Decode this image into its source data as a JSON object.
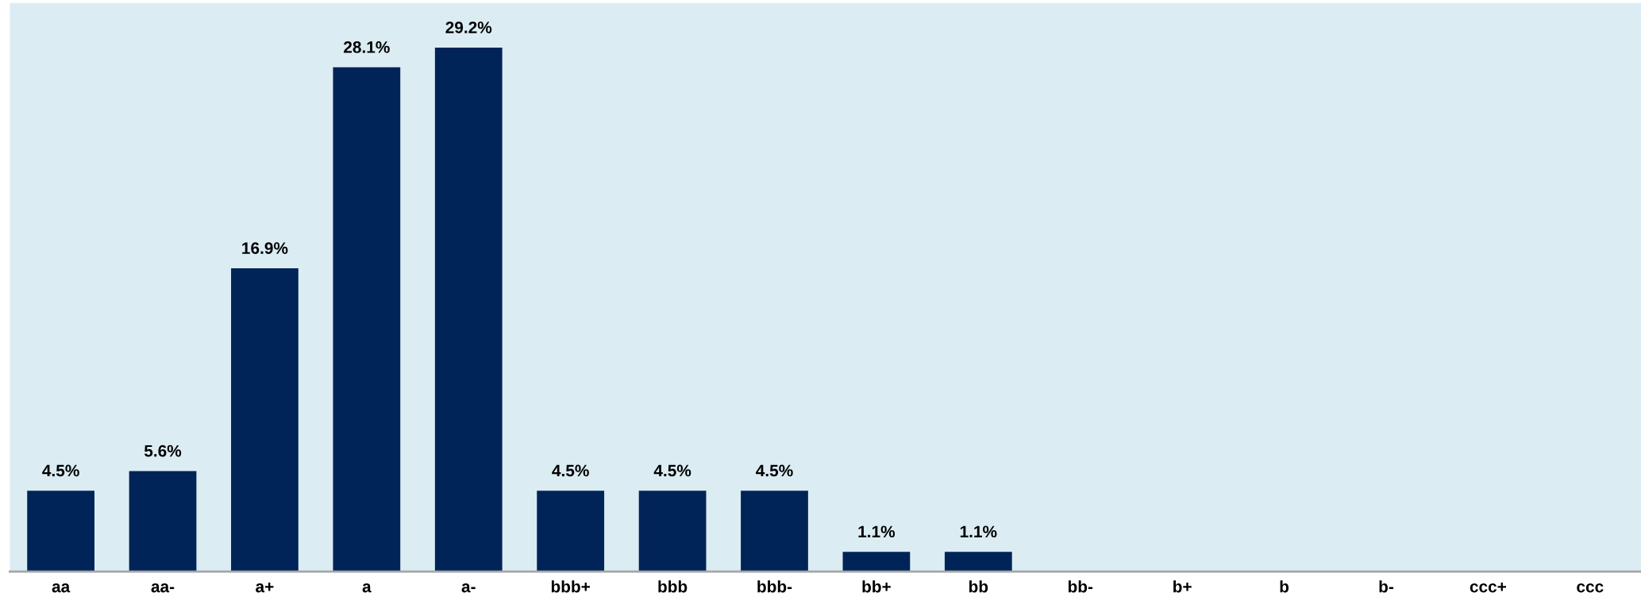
{
  "chart_data": {
    "type": "bar",
    "categories": [
      "aa",
      "aa-",
      "a+",
      "a",
      "a-",
      "bbb+",
      "bbb",
      "bbb-",
      "bb+",
      "bb",
      "bb-",
      "b+",
      "b",
      "b-",
      "ccc+",
      "ccc"
    ],
    "values": [
      4.5,
      5.6,
      16.9,
      28.1,
      29.2,
      4.5,
      4.5,
      4.5,
      1.1,
      1.1,
      0,
      0,
      0,
      0,
      0,
      0
    ],
    "value_labels": [
      "4.5%",
      "5.6%",
      "16.9%",
      "28.1%",
      "29.2%",
      "4.5%",
      "4.5%",
      "4.5%",
      "1.1%",
      "1.1%",
      null,
      null,
      null,
      null,
      null,
      null
    ],
    "color": "#002458",
    "grid": false,
    "legend": false
  }
}
